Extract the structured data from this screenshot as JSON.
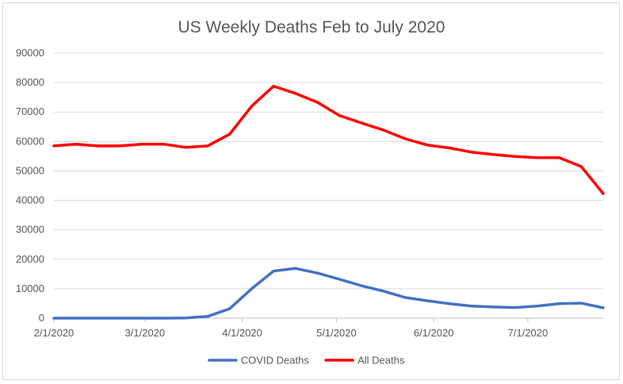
{
  "chart_data": {
    "type": "line",
    "title": "US Weekly Deaths Feb to July 2020",
    "xlabel": "",
    "ylabel": "",
    "ylim": [
      0,
      90000
    ],
    "y_ticks": [
      0,
      10000,
      20000,
      30000,
      40000,
      50000,
      60000,
      70000,
      80000,
      90000
    ],
    "x_tick_labels": [
      "2/1/2020",
      "3/1/2020",
      "4/1/2020",
      "5/1/2020",
      "6/1/2020",
      "7/1/2020"
    ],
    "x": [
      "2020-02-01",
      "2020-02-08",
      "2020-02-15",
      "2020-02-22",
      "2020-02-29",
      "2020-03-07",
      "2020-03-14",
      "2020-03-21",
      "2020-03-28",
      "2020-04-04",
      "2020-04-11",
      "2020-04-18",
      "2020-04-25",
      "2020-05-02",
      "2020-05-09",
      "2020-05-16",
      "2020-05-23",
      "2020-05-30",
      "2020-06-06",
      "2020-06-13",
      "2020-06-20",
      "2020-06-27",
      "2020-07-04",
      "2020-07-11",
      "2020-07-18",
      "2020-07-25"
    ],
    "xlim": [
      "2020-02-01",
      "2020-07-25"
    ],
    "series": [
      {
        "name": "COVID Deaths",
        "color": "#4472c4",
        "values": [
          0,
          0,
          0,
          0,
          0,
          0,
          50,
          600,
          3200,
          10000,
          16000,
          16900,
          15300,
          13200,
          11000,
          9200,
          7000,
          5900,
          4900,
          4100,
          3800,
          3600,
          4100,
          4900,
          5100,
          3500
        ]
      },
      {
        "name": "All Deaths",
        "color": "#ff0000",
        "values": [
          58500,
          59100,
          58500,
          58500,
          59100,
          59100,
          58000,
          58500,
          62500,
          72000,
          78800,
          76300,
          73300,
          68800,
          66300,
          63900,
          60900,
          58800,
          57800,
          56400,
          55600,
          54900,
          54500,
          54500,
          51500,
          42300
        ]
      }
    ],
    "grid": true,
    "legend_position": "bottom"
  }
}
